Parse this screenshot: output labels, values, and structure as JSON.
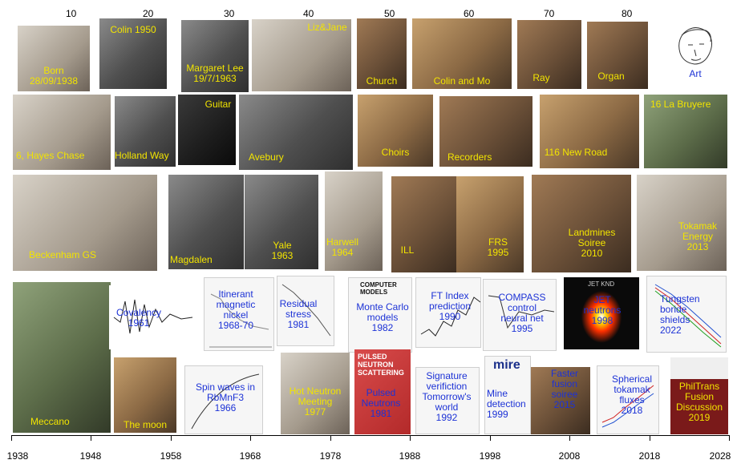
{
  "top_numbers": [
    "10",
    "20",
    "30",
    "40",
    "50",
    "60",
    "70",
    "80"
  ],
  "axis_years": [
    "1938",
    "1948",
    "1958",
    "1968",
    "1978",
    "1988",
    "1998",
    "2008",
    "2018",
    "2028"
  ],
  "tiles": {
    "born": "Born\n28/09/1938",
    "colin1950": "Colin 1950",
    "margaret": "Margaret Lee\n19/7/1963",
    "lizjane": "Liz&Jane",
    "church": "Church",
    "colinmo": "Colin and Mo",
    "ray": "Ray",
    "organ": "Organ",
    "art": "Art",
    "hayes": "6, Hayes Chase",
    "holland": "Holland Way",
    "guitar": "Guitar",
    "avebury": "Avebury",
    "choirs": "Choirs",
    "recorders": "Recorders",
    "newroad": "116 New Road",
    "labruyere": "16 La Bruyere",
    "beckenham": "Beckenham GS",
    "magdalen": "Magdalen",
    "yale": "Yale\n1963",
    "harwell": "Harwell\n1964",
    "ill": "ILL",
    "frs": "FRS\n1995",
    "landmines": "Landmines\nSoiree\n2010",
    "tokamak": "Tokamak\nEnergy\n2013",
    "covalency": "Covalency\n1961",
    "itinerant": "Itinerant\nmagnetic\nnickel\n1968-70",
    "residual": "Residual\nstress\n1981",
    "montecarlo": "Monte Carlo\nmodels\n1982",
    "ftindex": "FT Index\nprediction\n1990",
    "compass": "COMPASS\ncontrol\nneural net\n1995",
    "jet": "JET\nneutrons\n1998",
    "tungsten": "Tungsten\nboride\nshields\n2022",
    "meccano": "Meccano",
    "moon": "The moon",
    "spinwaves": "Spin waves in\nRbMnF3\n1966",
    "hotneutron": "Hot Neutron\nMeeting\n1977",
    "pulsed": "Pulsed\nNeutrons\n1981",
    "signature": "Signature\nverifiction\nTomorrow's\nworld\n1992",
    "mine": "Mine\ndetection\n1999",
    "faster": "Faster\nfusion\nsoiree\n2015",
    "spherical": "Spherical\ntokamak\nfluxes\n2018",
    "philtrans": "PhilTrans\nFusion\nDiscussion\n2019"
  },
  "doc_text": {
    "computer_models": "COMPUTER\nMODELS",
    "pulsed_cover": "PULSED\nNEUTRON\nSCATTERING",
    "mire": "mire",
    "jet_knd": "JET KND"
  }
}
